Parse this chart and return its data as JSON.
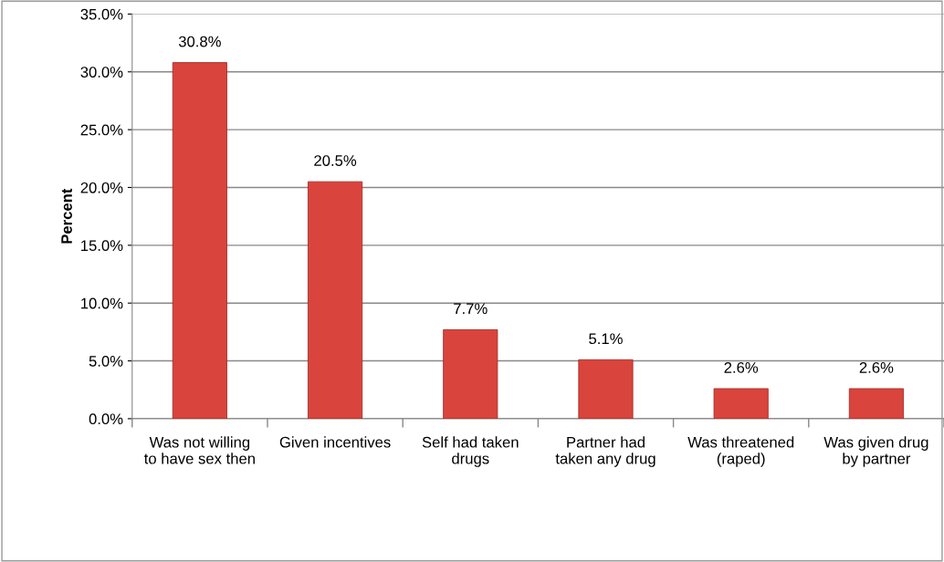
{
  "chart_data": {
    "type": "bar",
    "ylabel": "Percent",
    "categories": [
      "Was not willing\nto have sex then",
      "Given incentives",
      "Self had taken\ndrugs",
      "Partner had\ntaken any drug",
      "Was threatened\n(raped)",
      "Was given drug\nby partner"
    ],
    "values": [
      30.8,
      20.5,
      7.7,
      5.1,
      2.6,
      2.6
    ],
    "value_labels": [
      "30.8%",
      "20.5%",
      "7.7%",
      "5.1%",
      "2.6%",
      "2.6%"
    ],
    "color": "#d9443c",
    "ylim": [
      0,
      35
    ],
    "yticks": [
      {
        "value": 0,
        "label": "0.0%"
      },
      {
        "value": 5,
        "label": "5.0%"
      },
      {
        "value": 10,
        "label": "10.0%"
      },
      {
        "value": 15,
        "label": "15.0%"
      },
      {
        "value": 20,
        "label": "20.0%"
      },
      {
        "value": 25,
        "label": "25.0%"
      },
      {
        "value": 30,
        "label": "30.0%"
      },
      {
        "value": 35,
        "label": "35.0%"
      }
    ],
    "grid": "y",
    "legend": false
  }
}
